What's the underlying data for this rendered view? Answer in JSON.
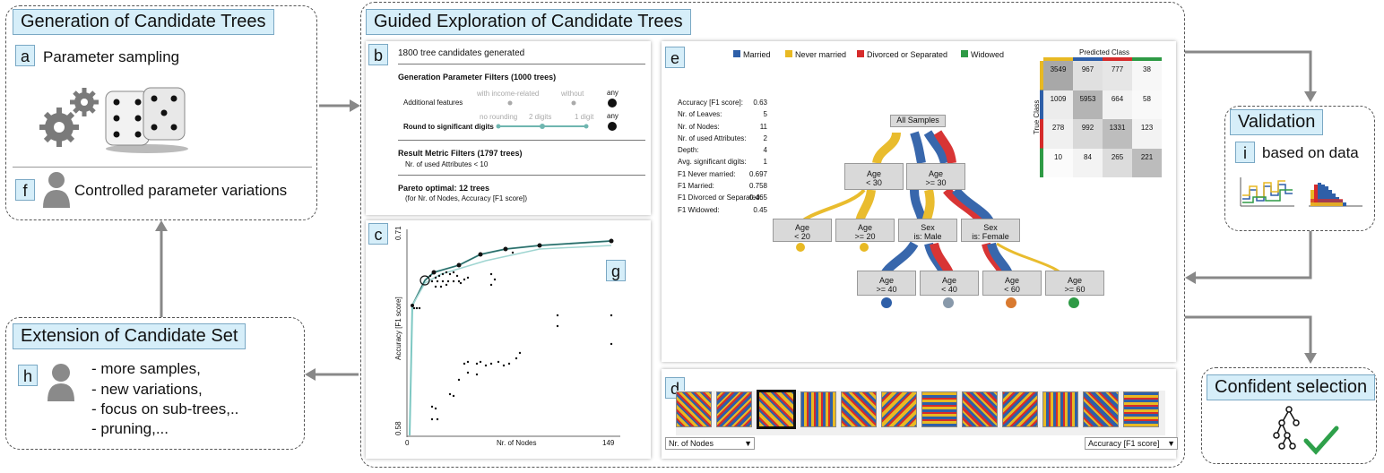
{
  "gen": {
    "title": "Generation of Candidate Trees",
    "a_tag": "a",
    "a_label": "Parameter sampling",
    "f_tag": "f",
    "f_label": "Controlled parameter variations"
  },
  "ext": {
    "title": "Extension of Candidate Set",
    "h_tag": "h",
    "items": [
      "- more samples,",
      "- new variations,",
      "- focus on sub-trees,..",
      "- pruning,..."
    ]
  },
  "guided": {
    "title": "Guided Exploration of Candidate Trees"
  },
  "panel_b": {
    "tag": "b",
    "generated": "1800 tree candidates generated",
    "gen_filters": "Generation Parameter Filters (1000 trees)",
    "addl_label": "Additional features",
    "addl_opts": [
      "with income-related",
      "without",
      "any"
    ],
    "round_label": "Round to significant digits",
    "round_opts": [
      "no rounding",
      "2 digits",
      "1 digit",
      "any"
    ],
    "result_filters": "Result Metric Filters (1797 trees)",
    "result_sub": "Nr. of used Attributes < 10",
    "pareto": "Pareto optimal: 12 trees",
    "pareto_sub": "(for Nr. of Nodes, Accuracy [F1 score])"
  },
  "panel_c": {
    "tag": "c",
    "g_tag": "g",
    "ytop": "0.71",
    "ybot": "0.58",
    "ylabel": "Accuracy [F1 score]",
    "xmin": "0",
    "xmax": "149",
    "xlabel": "Nr. of Nodes"
  },
  "panel_e": {
    "tag": "e",
    "legend": [
      "Married",
      "Never married",
      "Divorced or Separated",
      "Widowed"
    ],
    "legend_colors": [
      "#2e5fa8",
      "#e8b923",
      "#d62b2b",
      "#2e9a45"
    ],
    "metrics": [
      [
        "Accuracy [F1 score]:",
        "0.63"
      ],
      [
        "Nr. of Leaves:",
        "5"
      ],
      [
        "Nr. of Nodes:",
        "11"
      ],
      [
        "Nr. of used Attributes:",
        "2"
      ],
      [
        "Depth:",
        "4"
      ],
      [
        "Avg. significant digits:",
        "1"
      ],
      [
        "F1 Never married:",
        "0.697"
      ],
      [
        "F1 Married:",
        "0.758"
      ],
      [
        "F1 Divorced or Separated:",
        "0.465"
      ],
      [
        "F1 Widowed:",
        "0.45"
      ]
    ],
    "nodes": {
      "root": "All Samples",
      "age_lt30": [
        "Age",
        "< 30"
      ],
      "age_ge30": [
        "Age",
        ">= 30"
      ],
      "age_lt20": [
        "Age",
        "< 20"
      ],
      "age_ge20": [
        "Age",
        ">= 20"
      ],
      "sex_m": [
        "Sex",
        "is: Male"
      ],
      "sex_f": [
        "Sex",
        "is: Female"
      ],
      "age_ge40": [
        "Age",
        ">= 40"
      ],
      "age_lt40": [
        "Age",
        "< 40"
      ],
      "age_lt60": [
        "Age",
        "< 60"
      ],
      "age_ge60": [
        "Age",
        ">= 60"
      ]
    },
    "cm_title": "Predicted Class",
    "cm_ylabel": "True Class",
    "cm": [
      [
        "3549",
        "967",
        "777",
        "38"
      ],
      [
        "1009",
        "5953",
        "664",
        "58"
      ],
      [
        "278",
        "992",
        "1331",
        "123"
      ],
      [
        "10",
        "84",
        "265",
        "221"
      ]
    ]
  },
  "panel_d": {
    "tag": "d",
    "left_select": "Nr. of Nodes",
    "right_select": "Accuracy [F1 score]"
  },
  "valid": {
    "title": "Validation",
    "i_tag": "i",
    "label": "based on data"
  },
  "conf": {
    "title": "Confident selection"
  }
}
